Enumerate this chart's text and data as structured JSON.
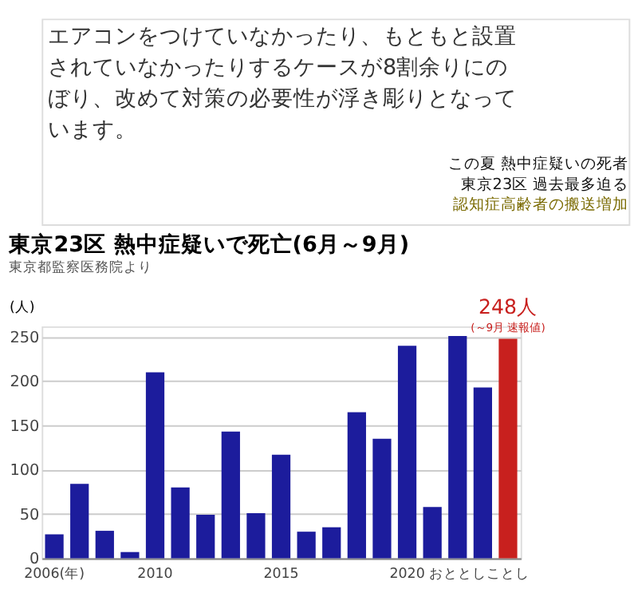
{
  "chart_data": {
    "type": "bar",
    "title": "東京23区 熱中症疑いで死亡(6月～9月)",
    "subtitle": "東京都監察医務院より",
    "ylabel": "(人)",
    "categories": [
      "2006(年)",
      null,
      null,
      null,
      "2010",
      null,
      null,
      null,
      null,
      "2015",
      null,
      null,
      null,
      null,
      "2020",
      null,
      "おととし",
      null,
      "ことし"
    ],
    "values": [
      27,
      84,
      31,
      7,
      210,
      80,
      49,
      143,
      51,
      117,
      30,
      35,
      165,
      135,
      240,
      58,
      251,
      193,
      248
    ],
    "colors": [
      "#1c1c9c",
      "#1c1c9c",
      "#1c1c9c",
      "#1c1c9c",
      "#1c1c9c",
      "#1c1c9c",
      "#1c1c9c",
      "#1c1c9c",
      "#1c1c9c",
      "#1c1c9c",
      "#1c1c9c",
      "#1c1c9c",
      "#1c1c9c",
      "#1c1c9c",
      "#1c1c9c",
      "#1c1c9c",
      "#1c1c9c",
      "#1c1c9c",
      "#c8201e"
    ],
    "value_labels": [
      null,
      null,
      null,
      null,
      null,
      null,
      null,
      null,
      null,
      null,
      null,
      null,
      null,
      null,
      null,
      null,
      null,
      null,
      "248人"
    ],
    "annotations": [
      "エアコンをつけていなかったり、もともと設置されていなかったりするケースが8割余りにのぼり、改めて対策の必要性が浮き彫りとなっています。",
      "この夏 熱中症疑いの死者",
      "東京23区 過去最多迫る",
      "認知症高齢者の搬送増加",
      "(～9月 速報値)"
    ],
    "ylim": [
      0,
      262
    ],
    "yticks": [
      0,
      50,
      100,
      150,
      200,
      250
    ],
    "grid": "y"
  }
}
